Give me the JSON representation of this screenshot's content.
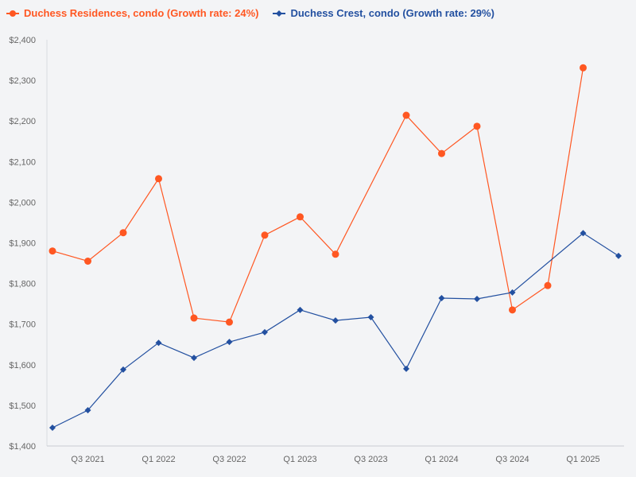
{
  "chart_data": {
    "type": "line",
    "title": "",
    "xlabel": "",
    "ylabel": "",
    "ylim": [
      1400,
      2400
    ],
    "y_ticks": [
      "$1,400",
      "$1,500",
      "$1,600",
      "$1,700",
      "$1,800",
      "$1,900",
      "$2,000",
      "$2,100",
      "$2,200",
      "$2,300",
      "$2,400"
    ],
    "y_tick_values": [
      1400,
      1500,
      1600,
      1700,
      1800,
      1900,
      2000,
      2100,
      2200,
      2300,
      2400
    ],
    "categories": [
      "Q2 2021",
      "Q3 2021",
      "Q4 2021",
      "Q1 2022",
      "Q2 2022",
      "Q3 2022",
      "Q4 2022",
      "Q1 2023",
      "Q2 2023",
      "Q3 2023",
      "Q4 2023",
      "Q1 2024",
      "Q2 2024",
      "Q3 2024",
      "Q4 2024",
      "Q1 2025",
      "Q2 2025"
    ],
    "x_tick_labels": [
      "Q3 2021",
      "Q1 2022",
      "Q3 2022",
      "Q1 2023",
      "Q3 2023",
      "Q1 2024",
      "Q3 2024",
      "Q1 2025"
    ],
    "grid": false,
    "legend_position": "top-left",
    "series": [
      {
        "name": "Duchess Residences, condo (Growth rate: 24%)",
        "color": "#ff5722",
        "marker": "circle",
        "values": [
          1880,
          1855,
          1925,
          2058,
          1715,
          1705,
          1919,
          1964,
          1872,
          null,
          2214,
          2120,
          2187,
          1735,
          1795,
          2331,
          null
        ]
      },
      {
        "name": "Duchess Crest, condo (Growth rate: 29%)",
        "color": "#2350a0",
        "marker": "diamond",
        "values": [
          1445,
          1488,
          1588,
          1654,
          1617,
          1656,
          1680,
          1735,
          1709,
          1717,
          1590,
          1764,
          1762,
          1778,
          null,
          1924,
          1868
        ]
      }
    ]
  }
}
